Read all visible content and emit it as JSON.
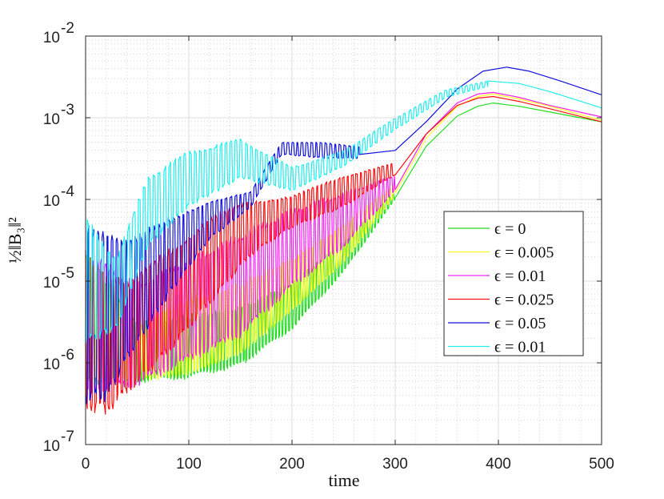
{
  "chart_data": {
    "type": "line",
    "title": "",
    "xlabel": "time",
    "ylabel": "½‖B₃‖²",
    "xlim": [
      0,
      500
    ],
    "ylim_log10": [
      -7,
      -2
    ],
    "yscale": "log",
    "grid": true,
    "minor_grid": true,
    "legend_position": "right-middle",
    "x_ticks": [
      0,
      100,
      200,
      300,
      400,
      500
    ],
    "x_tick_labels": [
      "0",
      "100",
      "200",
      "300",
      "400",
      "500"
    ],
    "y_ticks_log10": [
      -7,
      -6,
      -5,
      -4,
      -3,
      -2
    ],
    "y_tick_labels": [
      {
        "base": "10",
        "exp": "-7"
      },
      {
        "base": "10",
        "exp": "-6"
      },
      {
        "base": "10",
        "exp": "-5"
      },
      {
        "base": "10",
        "exp": "-4"
      },
      {
        "base": "10",
        "exp": "-3"
      },
      {
        "base": "10",
        "exp": "-2"
      }
    ],
    "series": [
      {
        "name": "ϵ = 0",
        "color": "#22dd22",
        "oscillation_end": 300,
        "upper_log10": [
          [
            0,
            -4.6
          ],
          [
            50,
            -5.5
          ],
          [
            100,
            -5.4
          ],
          [
            150,
            -5.3
          ],
          [
            200,
            -5.0
          ],
          [
            250,
            -4.5
          ],
          [
            300,
            -3.9
          ]
        ],
        "lower_log10": [
          [
            0,
            -6.3
          ],
          [
            50,
            -6.25
          ],
          [
            100,
            -6.2
          ],
          [
            150,
            -6.05
          ],
          [
            200,
            -5.6
          ],
          [
            250,
            -4.9
          ],
          [
            300,
            -4.0
          ]
        ],
        "smooth_log10": [
          [
            300,
            -3.98
          ],
          [
            330,
            -3.35
          ],
          [
            360,
            -2.98
          ],
          [
            380,
            -2.86
          ],
          [
            395,
            -2.82
          ],
          [
            420,
            -2.86
          ],
          [
            450,
            -2.93
          ],
          [
            500,
            -3.05
          ]
        ]
      },
      {
        "name": "ϵ = 0.005",
        "color": "#ffff22",
        "oscillation_end": 300,
        "upper_log10": [
          [
            0,
            -4.6
          ],
          [
            50,
            -5.5
          ],
          [
            100,
            -5.2
          ],
          [
            150,
            -5.0
          ],
          [
            200,
            -4.7
          ],
          [
            250,
            -4.3
          ],
          [
            300,
            -3.8
          ]
        ],
        "lower_log10": [
          [
            0,
            -6.3
          ],
          [
            50,
            -6.25
          ],
          [
            100,
            -6.15
          ],
          [
            150,
            -5.9
          ],
          [
            200,
            -5.4
          ],
          [
            250,
            -4.8
          ],
          [
            300,
            -3.95
          ]
        ],
        "smooth_log10": [
          [
            300,
            -3.92
          ],
          [
            330,
            -3.25
          ],
          [
            360,
            -2.86
          ],
          [
            380,
            -2.74
          ],
          [
            395,
            -2.71
          ],
          [
            420,
            -2.77
          ],
          [
            450,
            -2.86
          ],
          [
            500,
            -3.03
          ]
        ]
      },
      {
        "name": "ϵ = 0.01",
        "color": "#ee22ee",
        "oscillation_end": 300,
        "upper_log10": [
          [
            0,
            -4.6
          ],
          [
            50,
            -5.0
          ],
          [
            100,
            -4.7
          ],
          [
            150,
            -4.4
          ],
          [
            200,
            -4.1
          ],
          [
            250,
            -3.9
          ],
          [
            300,
            -3.7
          ]
        ],
        "lower_log10": [
          [
            0,
            -6.4
          ],
          [
            50,
            -6.3
          ],
          [
            100,
            -6.0
          ],
          [
            150,
            -5.7
          ],
          [
            200,
            -5.1
          ],
          [
            250,
            -4.6
          ],
          [
            300,
            -3.9
          ]
        ],
        "smooth_log10": [
          [
            300,
            -3.88
          ],
          [
            330,
            -3.2
          ],
          [
            360,
            -2.82
          ],
          [
            380,
            -2.71
          ],
          [
            395,
            -2.69
          ],
          [
            420,
            -2.75
          ],
          [
            450,
            -2.85
          ],
          [
            500,
            -2.99
          ]
        ]
      },
      {
        "name": "ϵ = 0.025",
        "color": "#ff1111",
        "oscillation_end": 300,
        "upper_log10": [
          [
            0,
            -4.6
          ],
          [
            40,
            -5.0
          ],
          [
            80,
            -4.6
          ],
          [
            120,
            -4.2
          ],
          [
            160,
            -4.0
          ],
          [
            200,
            -3.95
          ],
          [
            250,
            -3.7
          ],
          [
            300,
            -3.55
          ]
        ],
        "lower_log10": [
          [
            0,
            -6.6
          ],
          [
            20,
            -6.65
          ],
          [
            40,
            -6.4
          ],
          [
            80,
            -5.9
          ],
          [
            120,
            -5.3
          ],
          [
            160,
            -4.7
          ],
          [
            200,
            -4.35
          ],
          [
            250,
            -4.1
          ],
          [
            300,
            -3.7
          ]
        ],
        "smooth_log10": [
          [
            300,
            -3.7
          ],
          [
            330,
            -3.2
          ],
          [
            360,
            -2.85
          ],
          [
            380,
            -2.76
          ],
          [
            395,
            -2.74
          ],
          [
            420,
            -2.8
          ],
          [
            450,
            -2.89
          ],
          [
            500,
            -3.05
          ]
        ]
      },
      {
        "name": "ϵ = 0.05",
        "color": "#1111dd",
        "oscillation_end": 265,
        "upper_log10": [
          [
            0,
            -4.3
          ],
          [
            40,
            -4.5
          ],
          [
            80,
            -4.2
          ],
          [
            120,
            -4.0
          ],
          [
            160,
            -3.9
          ],
          [
            190,
            -3.3
          ],
          [
            230,
            -3.3
          ],
          [
            265,
            -3.35
          ]
        ],
        "lower_log10": [
          [
            0,
            -6.5
          ],
          [
            20,
            -6.5
          ],
          [
            40,
            -6.0
          ],
          [
            80,
            -5.2
          ],
          [
            120,
            -4.5
          ],
          [
            160,
            -4.1
          ],
          [
            190,
            -3.45
          ],
          [
            230,
            -3.5
          ],
          [
            265,
            -3.5
          ]
        ],
        "smooth_log10": [
          [
            265,
            -3.45
          ],
          [
            300,
            -3.4
          ],
          [
            330,
            -3.05
          ],
          [
            360,
            -2.65
          ],
          [
            385,
            -2.43
          ],
          [
            408,
            -2.38
          ],
          [
            430,
            -2.43
          ],
          [
            460,
            -2.55
          ],
          [
            500,
            -2.72
          ]
        ]
      },
      {
        "name": "ϵ = 0.01",
        "color": "#22eeee",
        "oscillation_end": 390,
        "upper_log10": [
          [
            0,
            -4.2
          ],
          [
            30,
            -4.7
          ],
          [
            60,
            -3.7
          ],
          [
            100,
            -3.4
          ],
          [
            150,
            -3.25
          ],
          [
            200,
            -3.6
          ],
          [
            250,
            -3.4
          ],
          [
            300,
            -3.0
          ],
          [
            350,
            -2.65
          ],
          [
            390,
            -2.55
          ]
        ],
        "lower_log10": [
          [
            0,
            -5.8
          ],
          [
            30,
            -5.6
          ],
          [
            60,
            -4.6
          ],
          [
            100,
            -4.1
          ],
          [
            150,
            -3.75
          ],
          [
            200,
            -3.9
          ],
          [
            250,
            -3.6
          ],
          [
            300,
            -3.15
          ],
          [
            350,
            -2.75
          ],
          [
            390,
            -2.62
          ]
        ],
        "smooth_log10": [
          [
            390,
            -2.55
          ],
          [
            420,
            -2.58
          ],
          [
            450,
            -2.68
          ],
          [
            480,
            -2.8
          ],
          [
            500,
            -2.88
          ]
        ]
      }
    ]
  }
}
